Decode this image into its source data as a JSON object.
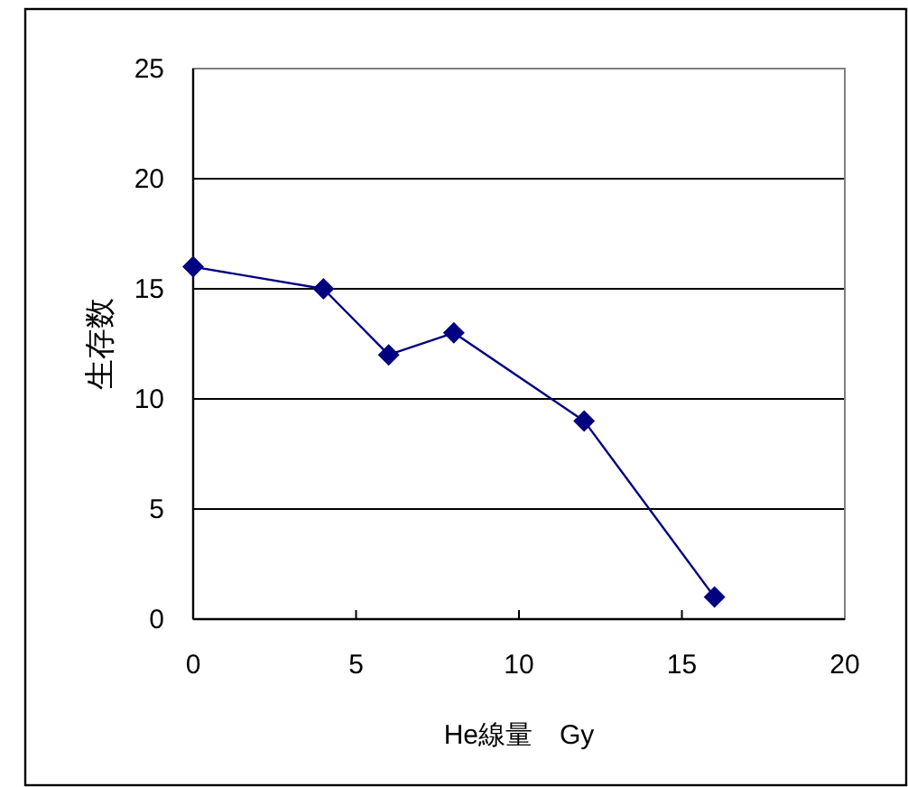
{
  "chart_data": {
    "type": "line",
    "xlabel": "He線量　Gy",
    "ylabel": "生存数",
    "x": [
      0,
      4,
      6,
      8,
      12,
      16
    ],
    "series": [
      {
        "color": "#000080",
        "values": [
          16,
          15,
          12,
          13,
          9,
          1
        ]
      }
    ],
    "xlim": [
      0,
      20
    ],
    "xticks": [
      0,
      5,
      10,
      15,
      20
    ],
    "ylim": [
      0,
      25
    ],
    "yticks": [
      0,
      5,
      10,
      15,
      20,
      25
    ],
    "grid": "y",
    "marker": "diamond",
    "line_style": "solid"
  }
}
